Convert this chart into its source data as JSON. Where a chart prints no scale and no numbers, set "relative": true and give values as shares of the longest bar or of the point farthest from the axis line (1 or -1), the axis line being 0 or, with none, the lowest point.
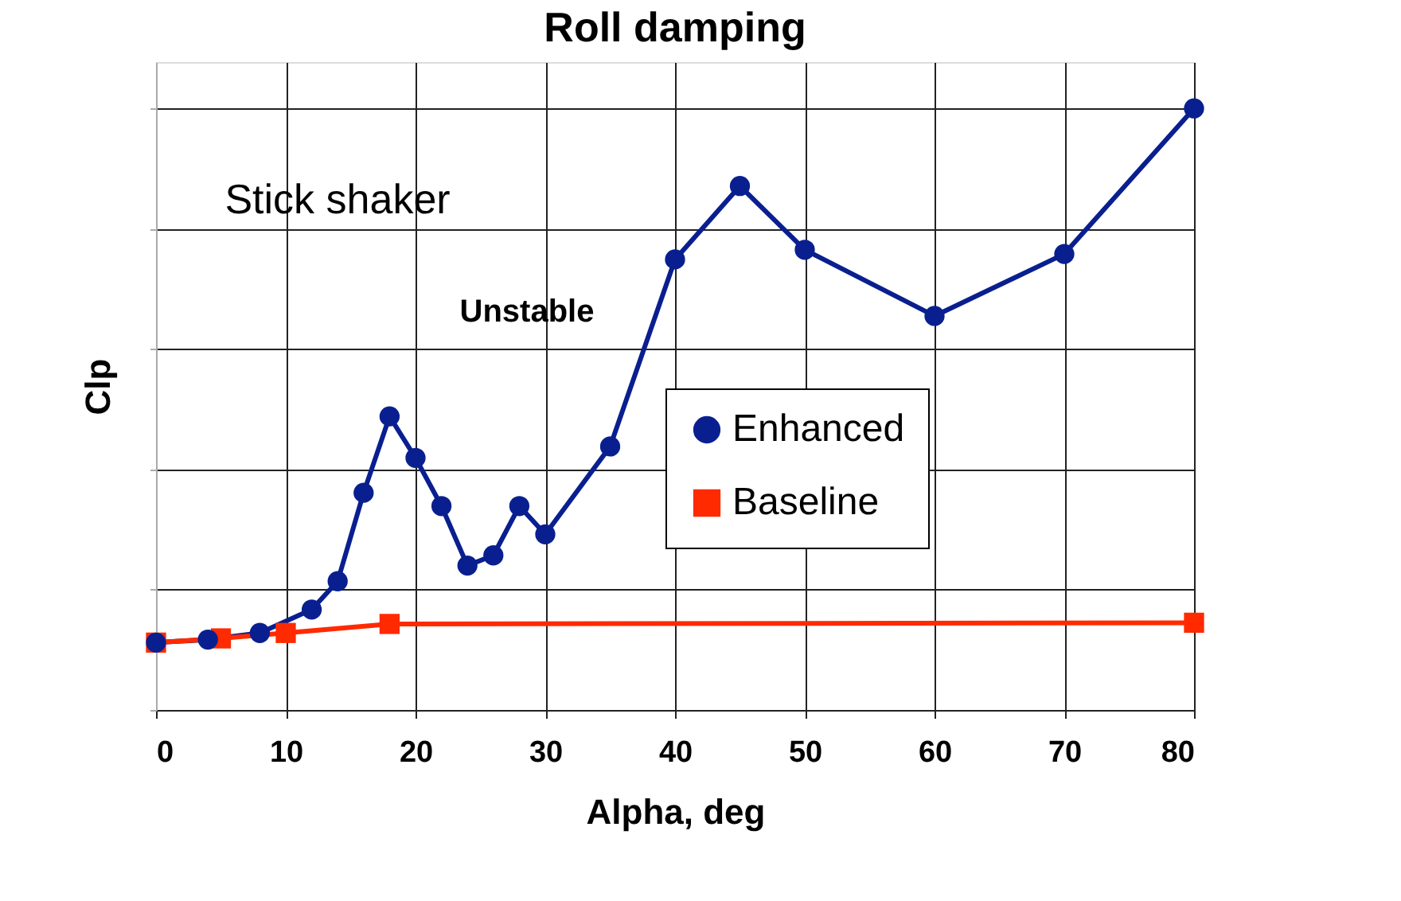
{
  "chart_data": {
    "type": "line",
    "title": "Roll damping",
    "xlabel": "Alpha,  deg",
    "ylabel": "Clp",
    "relative": true,
    "xlim": [
      0,
      80
    ],
    "xticks": [
      0,
      10,
      20,
      30,
      40,
      50,
      60,
      70,
      80
    ],
    "grid": true,
    "legend": "right",
    "marker": "circle",
    "line_style": "solid",
    "annotations": [
      "Stick shaker",
      "Unstable"
    ],
    "series": [
      {
        "name": "Enhanced",
        "color": "#0a1f8f",
        "marker": "circle",
        "x": [
          0,
          4,
          8,
          12,
          14,
          16,
          18,
          20,
          22,
          24,
          26,
          28,
          30,
          35,
          40,
          45,
          50,
          60,
          70,
          80
        ],
        "values": [
          0.112,
          0.117,
          0.128,
          0.167,
          0.214,
          0.361,
          0.488,
          0.419,
          0.339,
          0.24,
          0.257,
          0.339,
          0.292,
          0.438,
          0.749,
          0.871,
          0.765,
          0.655,
          0.758,
          1
        ]
      },
      {
        "name": "Baseline",
        "color": "#ff2a00",
        "marker": "square",
        "x": [
          0,
          5,
          10,
          18,
          80
        ],
        "values": [
          0.112,
          0.119,
          0.128,
          0.143,
          0.145
        ]
      }
    ]
  }
}
